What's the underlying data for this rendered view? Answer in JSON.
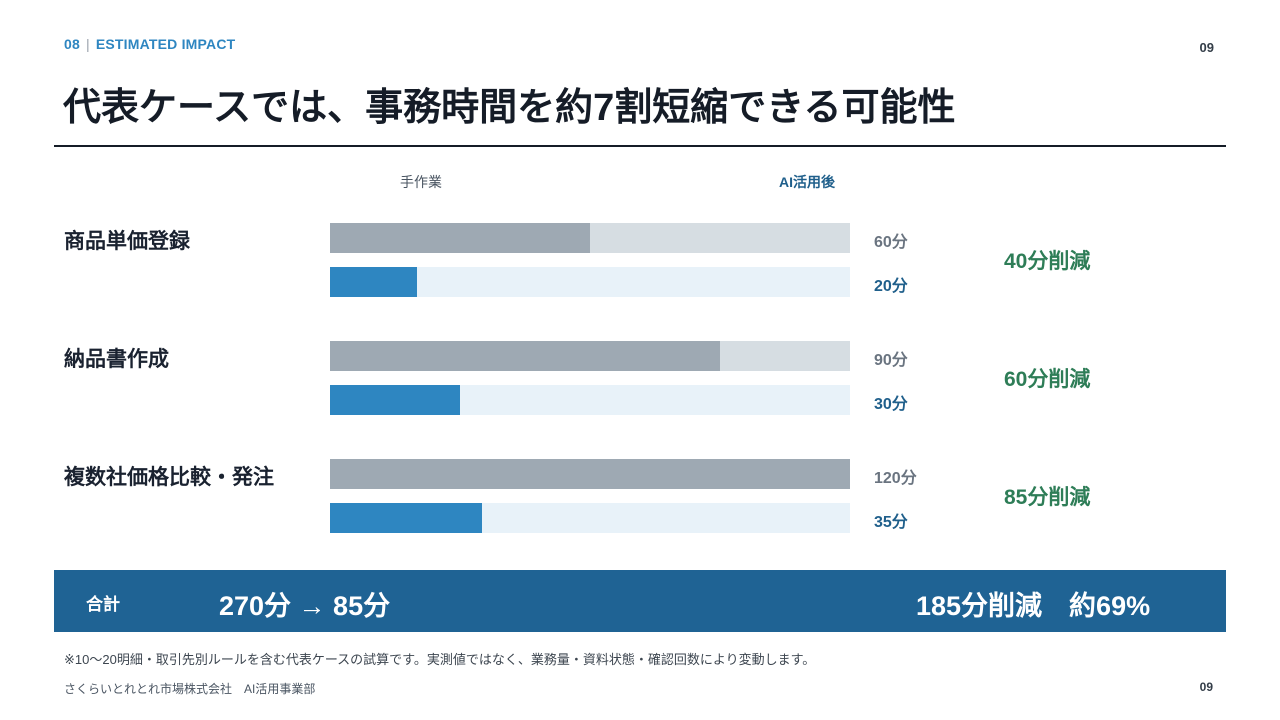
{
  "header": {
    "section_number": "08",
    "separator": "|",
    "section_title": "ESTIMATED IMPACT",
    "page_number": "09"
  },
  "title": "代表ケースでは、事務時間を約7割短縮できる可能性",
  "columns": {
    "manual": "手作業",
    "ai": "AI活用後"
  },
  "rows": [
    {
      "label": "商品単価登録",
      "manual_text": "60分",
      "ai_text": "20分",
      "manual_fraction": 0.5,
      "ai_fraction": 0.1667,
      "reduction": "40分削減"
    },
    {
      "label": "納品書作成",
      "manual_text": "90分",
      "ai_text": "30分",
      "manual_fraction": 0.75,
      "ai_fraction": 0.25,
      "reduction": "60分削減"
    },
    {
      "label": "複数社価格比較・発注",
      "manual_text": "120分",
      "ai_text": "35分",
      "manual_fraction": 1.0,
      "ai_fraction": 0.2917,
      "reduction": "85分削減"
    }
  ],
  "total": {
    "label": "合計",
    "value": "270分 → 85分",
    "reduction": "185分削減　約69%"
  },
  "note": "※10〜20明細・取引先別ルールを含む代表ケースの試算です。実測値ではなく、業務量・資料状態・確認回数により変動します。",
  "footer": {
    "company": "さくらいとれとれ市場株式会社　AI活用事業部",
    "page_number": "09"
  },
  "colors": {
    "accent": "#2e86c1",
    "manual_bar": "#9ea9b3",
    "total_bg": "#1f6394",
    "reduction": "#2e7d57"
  }
}
